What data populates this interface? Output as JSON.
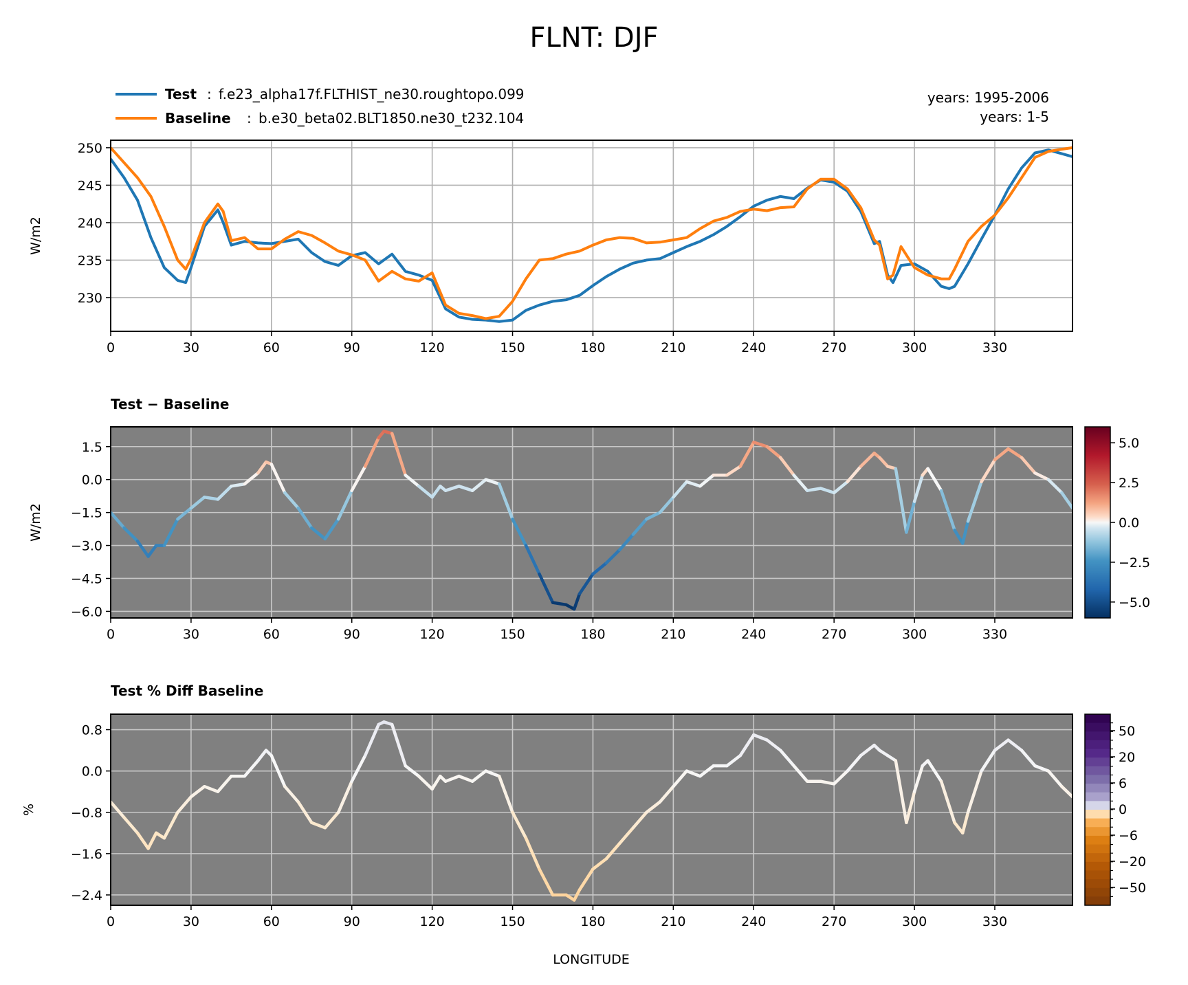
{
  "figure": {
    "title": "FLNT: DJF",
    "xlabel": "LONGITUDE",
    "legend": [
      {
        "label": "Test",
        "desc": "f.e23_alpha17f.FLTHIST_ne30.roughtopo.099",
        "color": "#1f77b4",
        "years": "years: 1995-2006"
      },
      {
        "label": "Baseline",
        "desc": "b.e30_beta02.BLT1850.ne30_t232.104",
        "color": "#ff7f0e",
        "years": "years: 1-5"
      }
    ]
  },
  "chart_data": [
    {
      "type": "line",
      "ylabel": "W/m2",
      "xlim": [
        0,
        359
      ],
      "ylim": [
        225.5,
        251
      ],
      "xticks": [
        0,
        30,
        60,
        90,
        120,
        150,
        180,
        210,
        240,
        270,
        300,
        330
      ],
      "yticks": [
        230,
        235,
        240,
        245,
        250
      ],
      "grid": true,
      "background": "#ffffff",
      "series": [
        {
          "name": "Test",
          "color": "#1f77b4",
          "x": [
            0,
            5,
            10,
            15,
            20,
            25,
            28,
            30,
            35,
            40,
            42,
            45,
            50,
            55,
            60,
            65,
            70,
            75,
            80,
            85,
            90,
            95,
            100,
            105,
            110,
            115,
            120,
            125,
            130,
            135,
            140,
            145,
            150,
            155,
            160,
            165,
            170,
            175,
            180,
            185,
            190,
            195,
            200,
            205,
            210,
            215,
            220,
            225,
            230,
            235,
            240,
            245,
            250,
            255,
            260,
            265,
            270,
            275,
            280,
            285,
            287,
            290,
            292,
            295,
            300,
            305,
            310,
            313,
            315,
            320,
            325,
            330,
            335,
            340,
            345,
            350,
            355,
            359
          ],
          "y": [
            248.5,
            246,
            243,
            238,
            234,
            232.3,
            232,
            234,
            239.5,
            241.7,
            240,
            237,
            237.5,
            237.3,
            237.2,
            237.5,
            237.8,
            236,
            234.8,
            234.3,
            235.6,
            236,
            234.5,
            235.8,
            233.5,
            233,
            232.3,
            228.5,
            227.4,
            227.1,
            227,
            226.8,
            227,
            228.3,
            229,
            229.5,
            229.7,
            230.3,
            231.6,
            232.8,
            233.8,
            234.6,
            235,
            235.2,
            236,
            236.8,
            237.5,
            238.4,
            239.5,
            240.8,
            242.2,
            243,
            243.5,
            243.2,
            244.6,
            245.7,
            245.4,
            244.2,
            241.5,
            237.2,
            237.5,
            233,
            232,
            234.3,
            234.5,
            233.5,
            231.5,
            231.2,
            231.5,
            234.5,
            237.8,
            241,
            244.5,
            247.3,
            249.3,
            249.7,
            249.2,
            248.8
          ]
        },
        {
          "name": "Baseline",
          "color": "#ff7f0e",
          "x": [
            0,
            5,
            10,
            15,
            20,
            25,
            28,
            30,
            35,
            40,
            42,
            45,
            50,
            55,
            60,
            65,
            70,
            75,
            80,
            85,
            90,
            95,
            100,
            105,
            110,
            115,
            120,
            125,
            130,
            135,
            140,
            145,
            150,
            155,
            160,
            165,
            170,
            175,
            180,
            185,
            190,
            195,
            200,
            205,
            210,
            215,
            220,
            225,
            230,
            235,
            240,
            245,
            250,
            255,
            260,
            265,
            270,
            275,
            280,
            285,
            287,
            290,
            292,
            295,
            300,
            305,
            310,
            313,
            315,
            320,
            325,
            330,
            335,
            340,
            345,
            350,
            355,
            359
          ],
          "y": [
            250,
            248,
            246,
            243.5,
            239.5,
            235,
            233.8,
            235.2,
            240,
            242.5,
            241.5,
            237.6,
            238,
            236.5,
            236.5,
            237.8,
            238.8,
            238.3,
            237.3,
            236.2,
            235.7,
            235,
            232.2,
            233.5,
            232.5,
            232.2,
            233.3,
            229,
            227.9,
            227.6,
            227.2,
            227.5,
            229.5,
            232.5,
            235,
            235.2,
            235.8,
            236.2,
            237,
            237.7,
            238,
            237.9,
            237.3,
            237.4,
            237.7,
            238,
            239.2,
            240.2,
            240.7,
            241.5,
            241.8,
            241.6,
            242,
            242.1,
            244.5,
            245.8,
            245.8,
            244.5,
            242,
            237.7,
            237,
            232.5,
            233,
            236.8,
            234,
            233,
            232.5,
            232.5,
            233.8,
            237.5,
            239.5,
            241,
            243.3,
            246,
            248.7,
            249.5,
            249.8,
            250
          ]
        }
      ]
    },
    {
      "type": "line",
      "title": "Test − Baseline",
      "ylabel": "W/m2",
      "xlim": [
        0,
        359
      ],
      "ylim": [
        -6.3,
        2.4
      ],
      "xticks": [
        0,
        30,
        60,
        90,
        120,
        150,
        180,
        210,
        240,
        270,
        300,
        330
      ],
      "yticks": [
        1.5,
        0.0,
        -1.5,
        -3.0,
        -4.5,
        -6.0
      ],
      "ytick_labels": [
        "1.5",
        "0.0",
        "−1.5",
        "−3.0",
        "−4.5",
        "−6.0"
      ],
      "grid": true,
      "background": "#808080",
      "colorbar": {
        "ticks": [
          5.0,
          2.5,
          0.0,
          -2.5,
          -5.0
        ],
        "tick_labels": [
          "5.0",
          "2.5",
          "0.0",
          "−2.5",
          "−5.0"
        ],
        "range": [
          -6,
          6
        ],
        "colormap": "RdBu_r"
      },
      "series": [
        {
          "x": [
            0,
            5,
            10,
            14,
            17,
            20,
            25,
            30,
            35,
            40,
            45,
            50,
            55,
            58,
            60,
            65,
            70,
            75,
            80,
            85,
            90,
            95,
            100,
            102,
            105,
            110,
            115,
            120,
            123,
            125,
            130,
            135,
            140,
            145,
            150,
            155,
            160,
            165,
            170,
            173,
            175,
            180,
            185,
            190,
            195,
            200,
            205,
            210,
            215,
            220,
            225,
            230,
            235,
            240,
            245,
            250,
            255,
            260,
            265,
            270,
            275,
            280,
            285,
            287,
            290,
            293,
            297,
            300,
            303,
            305,
            310,
            315,
            318,
            320,
            325,
            330,
            335,
            340,
            345,
            350,
            355,
            359
          ],
          "y": [
            -1.5,
            -2.2,
            -2.8,
            -3.5,
            -3.0,
            -3.0,
            -1.8,
            -1.3,
            -0.8,
            -0.9,
            -0.3,
            -0.2,
            0.3,
            0.8,
            0.7,
            -0.6,
            -1.3,
            -2.2,
            -2.7,
            -1.8,
            -0.5,
            0.6,
            1.9,
            2.2,
            2.1,
            0.2,
            -0.3,
            -0.8,
            -0.3,
            -0.5,
            -0.3,
            -0.5,
            0.0,
            -0.2,
            -1.8,
            -3.0,
            -4.3,
            -5.6,
            -5.7,
            -5.9,
            -5.2,
            -4.3,
            -3.8,
            -3.2,
            -2.5,
            -1.8,
            -1.5,
            -0.8,
            -0.1,
            -0.3,
            0.2,
            0.2,
            0.6,
            1.7,
            1.5,
            1.0,
            0.2,
            -0.5,
            -0.4,
            -0.6,
            -0.1,
            0.6,
            1.2,
            1.0,
            0.6,
            0.5,
            -2.4,
            -1.0,
            0.2,
            0.5,
            -0.5,
            -2.3,
            -2.9,
            -1.9,
            -0.1,
            0.9,
            1.4,
            1.0,
            0.3,
            0.0,
            -0.6,
            -1.3
          ]
        }
      ]
    },
    {
      "type": "line",
      "title": "Test % Diff Baseline",
      "ylabel": "%",
      "xlim": [
        0,
        359
      ],
      "ylim": [
        -2.6,
        1.1
      ],
      "xticks": [
        0,
        30,
        60,
        90,
        120,
        150,
        180,
        210,
        240,
        270,
        300,
        330
      ],
      "yticks": [
        0.8,
        0.0,
        -0.8,
        -1.6,
        -2.4
      ],
      "ytick_labels": [
        "0.8",
        "0.0",
        "−0.8",
        "−1.6",
        "−2.4"
      ],
      "grid": true,
      "background": "#808080",
      "colorbar": {
        "ticks": [
          50,
          20,
          6,
          0,
          -6,
          -20,
          -50
        ],
        "tick_labels": [
          "50",
          "20",
          "6",
          "0",
          "−6",
          "−20",
          "−50"
        ],
        "colormap": "PuOr"
      },
      "series": [
        {
          "x": [
            0,
            5,
            10,
            14,
            17,
            20,
            25,
            30,
            35,
            40,
            45,
            50,
            55,
            58,
            60,
            65,
            70,
            75,
            80,
            85,
            90,
            95,
            100,
            102,
            105,
            110,
            115,
            120,
            123,
            125,
            130,
            135,
            140,
            145,
            150,
            155,
            160,
            165,
            170,
            173,
            175,
            180,
            185,
            190,
            195,
            200,
            205,
            210,
            215,
            220,
            225,
            230,
            235,
            240,
            245,
            250,
            255,
            260,
            265,
            270,
            275,
            280,
            285,
            287,
            290,
            293,
            297,
            300,
            303,
            305,
            310,
            315,
            318,
            320,
            325,
            330,
            335,
            340,
            345,
            350,
            355,
            359
          ],
          "y": [
            -0.6,
            -0.9,
            -1.2,
            -1.5,
            -1.2,
            -1.3,
            -0.8,
            -0.5,
            -0.3,
            -0.4,
            -0.1,
            -0.1,
            0.2,
            0.4,
            0.3,
            -0.3,
            -0.6,
            -1.0,
            -1.1,
            -0.8,
            -0.2,
            0.3,
            0.9,
            0.95,
            0.9,
            0.1,
            -0.1,
            -0.35,
            -0.1,
            -0.2,
            -0.1,
            -0.2,
            0.0,
            -0.1,
            -0.8,
            -1.3,
            -1.9,
            -2.4,
            -2.4,
            -2.5,
            -2.3,
            -1.9,
            -1.7,
            -1.4,
            -1.1,
            -0.8,
            -0.6,
            -0.3,
            0.0,
            -0.1,
            0.1,
            0.1,
            0.3,
            0.7,
            0.6,
            0.4,
            0.1,
            -0.2,
            -0.2,
            -0.25,
            0.0,
            0.3,
            0.5,
            0.4,
            0.3,
            0.2,
            -1.0,
            -0.4,
            0.1,
            0.2,
            -0.2,
            -1.0,
            -1.2,
            -0.8,
            0.0,
            0.4,
            0.6,
            0.4,
            0.1,
            0.0,
            -0.3,
            -0.5
          ]
        }
      ]
    }
  ]
}
